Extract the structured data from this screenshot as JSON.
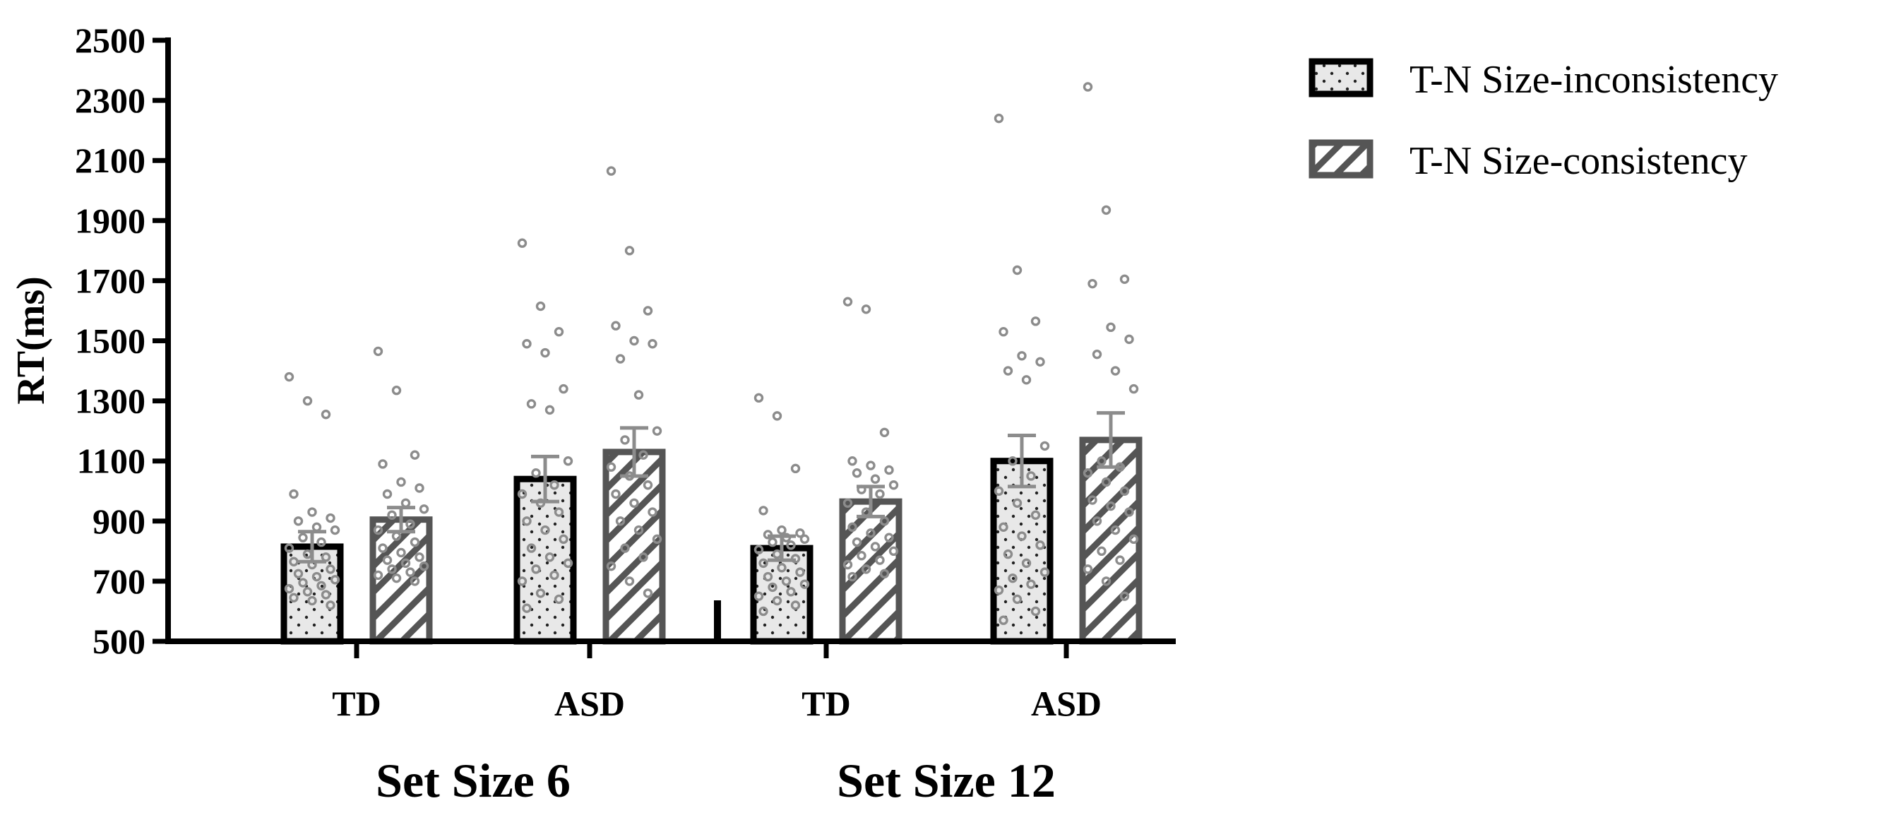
{
  "chart_data": {
    "type": "bar",
    "ylabel": "RT(ms)",
    "xlabel": "",
    "ylim": [
      500,
      2500
    ],
    "yticks": [
      500,
      700,
      900,
      1100,
      1300,
      1500,
      1700,
      1900,
      2100,
      2300,
      2500
    ],
    "grid": false,
    "legend_position": "top-right",
    "legend": [
      "T-N Size-inconsistency",
      "T-N Size-consistency"
    ],
    "colors": {
      "inconsistency_edge": "#000000",
      "consistency_edge": "#555555",
      "bar_fill": "#e8e8e8",
      "points": "#8c8c8c",
      "error": "#8c8c8c"
    },
    "set_sizes": [
      {
        "label": "Set Size 6",
        "groups": [
          {
            "label": "TD",
            "series": [
              {
                "name": "T-N Size-inconsistency",
                "mean": 815,
                "sem": 50,
                "points": [
                  1380,
                  1300,
                  1255,
                  990,
                  930,
                  910,
                  900,
                  880,
                  870,
                  845,
                  830,
                  810,
                  790,
                  780,
                  765,
                  755,
                  740,
                  725,
                  715,
                  705,
                  695,
                  685,
                  675,
                  665,
                  655,
                  645,
                  635,
                  620
                ]
              },
              {
                "name": "T-N Size-consistency",
                "mean": 905,
                "sem": 40,
                "points": [
                  1465,
                  1335,
                  1120,
                  1090,
                  1030,
                  1010,
                  990,
                  960,
                  940,
                  920,
                  890,
                  870,
                  850,
                  830,
                  810,
                  795,
                  780,
                  770,
                  760,
                  750,
                  740,
                  730,
                  720,
                  710,
                  700
                ]
              }
            ]
          },
          {
            "label": "ASD",
            "series": [
              {
                "name": "T-N Size-inconsistency",
                "mean": 1040,
                "sem": 75,
                "points": [
                  1825,
                  1615,
                  1530,
                  1490,
                  1460,
                  1340,
                  1290,
                  1270,
                  1100,
                  1060,
                  1020,
                  990,
                  960,
                  930,
                  900,
                  870,
                  840,
                  810,
                  780,
                  760,
                  740,
                  720,
                  700,
                  660,
                  640,
                  610
                ]
              },
              {
                "name": "T-N Size-consistency",
                "mean": 1130,
                "sem": 80,
                "points": [
                  2065,
                  1800,
                  1600,
                  1550,
                  1500,
                  1490,
                  1440,
                  1320,
                  1200,
                  1170,
                  1120,
                  1080,
                  1050,
                  1020,
                  990,
                  960,
                  930,
                  900,
                  870,
                  840,
                  810,
                  780,
                  750,
                  700,
                  660
                ]
              }
            ]
          }
        ]
      },
      {
        "label": "Set Size 12",
        "groups": [
          {
            "label": "TD",
            "series": [
              {
                "name": "T-N Size-inconsistency",
                "mean": 810,
                "sem": 40,
                "points": [
                  1310,
                  1250,
                  1075,
                  935,
                  870,
                  860,
                  855,
                  845,
                  840,
                  830,
                  820,
                  805,
                  790,
                  775,
                  760,
                  745,
                  730,
                  715,
                  700,
                  690,
                  680,
                  665,
                  650,
                  635,
                  620,
                  600
                ]
              },
              {
                "name": "T-N Size-consistency",
                "mean": 965,
                "sem": 50,
                "points": [
                  1630,
                  1605,
                  1195,
                  1100,
                  1085,
                  1070,
                  1060,
                  1040,
                  1020,
                  1005,
                  990,
                  960,
                  930,
                  900,
                  880,
                  860,
                  845,
                  830,
                  815,
                  800,
                  785,
                  770,
                  755,
                  740,
                  725,
                  715
                ]
              }
            ]
          },
          {
            "label": "ASD",
            "series": [
              {
                "name": "T-N Size-inconsistency",
                "mean": 1100,
                "sem": 85,
                "points": [
                  2240,
                  1735,
                  1565,
                  1530,
                  1450,
                  1430,
                  1400,
                  1370,
                  1150,
                  1100,
                  1050,
                  1000,
                  960,
                  920,
                  880,
                  850,
                  820,
                  790,
                  760,
                  730,
                  710,
                  690,
                  670,
                  640,
                  600,
                  570
                ]
              },
              {
                "name": "T-N Size-consistency",
                "mean": 1170,
                "sem": 90,
                "points": [
                  2345,
                  1935,
                  1705,
                  1690,
                  1545,
                  1505,
                  1455,
                  1400,
                  1340,
                  1100,
                  1080,
                  1060,
                  1030,
                  1000,
                  970,
                  950,
                  930,
                  900,
                  870,
                  840,
                  800,
                  770,
                  740,
                  700,
                  650
                ]
              }
            ]
          }
        ]
      }
    ]
  }
}
